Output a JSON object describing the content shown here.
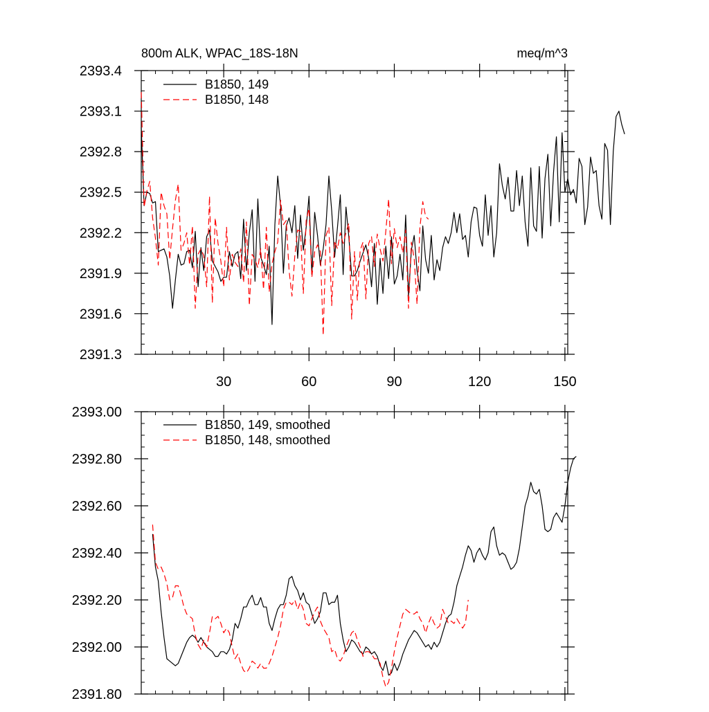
{
  "charts": [
    {
      "title_left": "800m ALK, WPAC_18S-18N",
      "title_right": "meq/m^3"
    },
    {}
  ],
  "chart_data": [
    {
      "type": "line",
      "title": "800m ALK, WPAC_18S-18N",
      "units": "meq/m^3",
      "xlim": [
        1,
        151
      ],
      "ylim": [
        2391.3,
        2393.4
      ],
      "xticks": [
        30,
        60,
        90,
        120,
        150
      ],
      "xtick_labels": [
        "30",
        "60",
        "90",
        "120",
        "150"
      ],
      "yticks": [
        2391.3,
        2391.6,
        2391.9,
        2392.2,
        2392.5,
        2392.8,
        2393.1,
        2393.4
      ],
      "ytick_labels": [
        "2391.3",
        "2391.6",
        "2391.9",
        "2392.2",
        "2392.5",
        "2392.8",
        "2393.1",
        "2393.4"
      ],
      "series": [
        {
          "name": "B1850, 149",
          "color": "#000000",
          "dash": "solid",
          "x_start": 1,
          "values": [
            2392.98,
            2392.4,
            2392.5,
            2392.49,
            2392.42,
            2392.43,
            2392.06,
            2392.07,
            2392.08,
            2392.02,
            2391.88,
            2391.64,
            2391.85,
            2392.04,
            2391.96,
            2391.97,
            2392.06,
            2392.07,
            2391.94,
            2392.21,
            2391.8,
            2392.09,
            2391.92,
            2392.17,
            2392.22,
            2391.99,
            2391.95,
            2391.91,
            2391.84,
            2391.87,
            2391.87,
            2392.06,
            2391.95,
            2392.04,
            2392.06,
            2391.86,
            2392.3,
            2391.92,
            2392.2,
            2392.37,
            2391.84,
            2392.45,
            2392.02,
            2391.96,
            2391.89,
            2392.1,
            2391.52,
            2392.26,
            2392.62,
            2392.4,
            2391.9,
            2392.25,
            2392.31,
            2392.2,
            2392.4,
            2392.01,
            2392.33,
            2392.07,
            2392.24,
            2392.47,
            2391.89,
            2392.35,
            2392.18,
            2391.96,
            2392.08,
            2392.26,
            2392.62,
            2392.36,
            2392.02,
            2392.24,
            2392.48,
            2391.89,
            2392.39,
            2392.17,
            2391.88,
            2391.88,
            2391.92,
            2391.99,
            2392.05,
            2392.11,
            2392.01,
            2391.8,
            2392.12,
            2391.67,
            2392.01,
            2391.75,
            2392.1,
            2391.86,
            2392.17,
            2391.82,
            2391.88,
            2392.04,
            2391.85,
            2392.33,
            2391.73,
            2392.07,
            2392.18,
            2391.92,
            2391.77,
            2392.25,
            2392.0,
            2391.9,
            2392.18,
            2391.85,
            2392.0,
            2391.92,
            2392.09,
            2392.17,
            2392.12,
            2392.2,
            2392.35,
            2392.2,
            2392.34,
            2392.15,
            2392.18,
            2392.02,
            2392.28,
            2392.39,
            2392.38,
            2392.18,
            2392.1,
            2392.48,
            2392.18,
            2392.4,
            2392.02,
            2392.2,
            2392.71,
            2392.55,
            2392.45,
            2392.61,
            2392.36,
            2392.36,
            2392.66,
            2392.4,
            2392.62,
            2392.28,
            2392.1,
            2392.68,
            2392.25,
            2392.21,
            2392.69,
            2392.16,
            2392.6,
            2392.78,
            2392.25,
            2392.65,
            2392.91,
            2392.28,
            2392.94,
            2392.5,
            2392.6,
            2392.48,
            2392.52,
            2392.42,
            2392.75,
            2392.69,
            2392.26,
            2392.39,
            2392.76,
            2392.64,
            2392.66,
            2392.4,
            2392.3,
            2392.86,
            2392.81,
            2392.26,
            2392.8,
            2393.06,
            2393.1,
            2393.0,
            2392.93
          ]
        },
        {
          "name": "B1850, 148",
          "color": "#ff0000",
          "dash": "dashed",
          "x_start": 1,
          "values": [
            2393.24,
            2392.39,
            2392.51,
            2392.58,
            2392.31,
            2392.16,
            2391.96,
            2392.5,
            2392.4,
            2392.34,
            2392.0,
            2392.23,
            2392.44,
            2392.56,
            2392.07,
            2392.12,
            2392.2,
            2391.96,
            2392.25,
            2391.64,
            2392.04,
            2392.08,
            2392.03,
            2391.8,
            2392.47,
            2391.68,
            2392.31,
            2392.12,
            2391.99,
            2391.8,
            2392.24,
            2391.85,
            2392.04,
            2391.98,
            2391.95,
            2392.08,
            2391.83,
            2392.28,
            2391.66,
            2392.04,
            2392.0,
            2391.94,
            2392.08,
            2391.78,
            2392.24,
            2391.76,
            2391.97,
            2392.06,
            2392.13,
            2392.44,
            2392.26,
            2392.29,
            2391.92,
            2391.73,
            2392.03,
            2392.22,
            2392.21,
            2391.75,
            2392.29,
            2392.38,
            2391.87,
            2392.06,
            2392.11,
            2392.06,
            2391.44,
            2392.18,
            2392.24,
            2391.66,
            2392.14,
            2392.08,
            2392.2,
            2392.12,
            2392.2,
            2392.27,
            2391.56,
            2392.06,
            2391.7,
            2392.07,
            2392.13,
            2391.71,
            2392.12,
            2392.17,
            2391.95,
            2392.19,
            2392.08,
            2391.99,
            2392.21,
            2392.45,
            2391.97,
            2392.23,
            2392.09,
            2392.17,
            2392.05,
            2392.22,
            2391.64,
            2392.13,
            2392.01,
            2391.67,
            2392.24,
            2392.43,
            2392.32,
            2392.3
          ]
        }
      ]
    },
    {
      "type": "line",
      "title": "",
      "xlim": [
        1,
        151
      ],
      "ylim": [
        2391.8,
        2393.0
      ],
      "xticks": [
        30,
        60,
        90,
        120,
        150
      ],
      "yticks": [
        2391.8,
        2392.0,
        2392.2,
        2392.4,
        2392.6,
        2392.8,
        2393.0
      ],
      "ytick_labels": [
        "2391.80",
        "2392.00",
        "2392.20",
        "2392.40",
        "2392.60",
        "2392.80",
        "2393.00"
      ],
      "series": [
        {
          "name": "B1850, 149, smoothed",
          "color": "#000000",
          "dash": "solid",
          "x_start": 5,
          "values": [
            2392.48,
            2392.34,
            2392.28,
            2392.15,
            2392.04,
            2391.95,
            2391.94,
            2391.93,
            2391.92,
            2391.93,
            2391.96,
            2391.99,
            2392.02,
            2392.04,
            2392.05,
            2392.04,
            2392.02,
            2392.04,
            2392.02,
            2392.0,
            2391.99,
            2391.98,
            2391.96,
            2391.96,
            2391.98,
            2391.98,
            2391.97,
            2391.99,
            2392.03,
            2392.1,
            2392.08,
            2392.12,
            2392.17,
            2392.17,
            2392.2,
            2392.22,
            2392.18,
            2392.18,
            2392.21,
            2392.17,
            2392.17,
            2392.1,
            2392.07,
            2392.12,
            2392.16,
            2392.18,
            2392.18,
            2392.22,
            2392.29,
            2392.3,
            2392.26,
            2392.24,
            2392.2,
            2392.23,
            2392.19,
            2392.18,
            2392.14,
            2392.1,
            2392.12,
            2392.15,
            2392.23,
            2392.23,
            2392.18,
            2392.19,
            2392.19,
            2392.22,
            2392.1,
            2392.03,
            2391.98,
            2392.0,
            2392.03,
            2392.02,
            2392.0,
            2391.98,
            2391.97,
            2392.0,
            2391.99,
            2391.97,
            2391.98,
            2391.96,
            2391.92,
            2391.9,
            2391.94,
            2391.88,
            2391.89,
            2391.93,
            2391.9,
            2391.93,
            2391.97,
            2392.0,
            2392.03,
            2392.05,
            2392.07,
            2392.06,
            2392.04,
            2392.02,
            2392.0,
            2392.01,
            2391.99,
            2392.02,
            2392.0,
            2392.02,
            2392.06,
            2392.1,
            2392.13,
            2392.14,
            2392.19,
            2392.26,
            2392.3,
            2392.34,
            2392.39,
            2392.43,
            2392.41,
            2392.36,
            2392.4,
            2392.42,
            2392.39,
            2392.37,
            2392.4,
            2392.49,
            2392.51,
            2392.43,
            2392.39,
            2392.4,
            2392.39,
            2392.36,
            2392.33,
            2392.34,
            2392.36,
            2392.42,
            2392.51,
            2392.6,
            2392.64,
            2392.7,
            2392.66,
            2392.65,
            2392.67,
            2392.6,
            2392.5,
            2392.49,
            2392.5,
            2392.55,
            2392.57,
            2392.55,
            2392.53,
            2392.6,
            2392.7,
            2392.76,
            2392.8,
            2392.81
          ]
        },
        {
          "name": "B1850, 148, smoothed",
          "color": "#ff0000",
          "dash": "dashed",
          "x_start": 5,
          "values": [
            2392.52,
            2392.36,
            2392.33,
            2392.34,
            2392.31,
            2392.27,
            2392.2,
            2392.21,
            2392.26,
            2392.26,
            2392.22,
            2392.17,
            2392.14,
            2392.13,
            2392.12,
            2392.05,
            2392.01,
            2391.99,
            2392.03,
            2392.0,
            2392.06,
            2392.13,
            2392.12,
            2392.13,
            2392.1,
            2392.06,
            2392.08,
            2392.06,
            2392.0,
            2391.95,
            2391.97,
            2391.93,
            2391.9,
            2391.89,
            2391.91,
            2391.94,
            2391.93,
            2391.91,
            2391.93,
            2391.91,
            2391.91,
            2391.93,
            2391.96,
            2392.0,
            2392.04,
            2392.09,
            2392.16,
            2392.19,
            2392.19,
            2392.18,
            2392.2,
            2392.16,
            2392.19,
            2392.16,
            2392.1,
            2392.09,
            2392.12,
            2392.15,
            2392.17,
            2392.11,
            2392.08,
            2392.06,
            2392.04,
            2391.98,
            2391.99,
            2391.95,
            2391.94,
            2391.96,
            2392.0,
            2392.03,
            2392.06,
            2392.07,
            2392.03,
            2392.0,
            2391.96,
            2391.98,
            2391.98,
            2391.97,
            2391.95,
            2391.95,
            2391.93,
            2391.87,
            2391.83,
            2391.85,
            2391.91,
            2391.98,
            2392.04,
            2392.09,
            2392.14,
            2392.16,
            2392.15,
            2392.14,
            2392.14,
            2392.15,
            2392.12,
            2392.1,
            2392.06,
            2392.1,
            2392.13,
            2392.1,
            2392.08,
            2392.09,
            2392.16,
            2392.13,
            2392.1,
            2392.11,
            2392.1,
            2392.12,
            2392.1,
            2392.08,
            2392.1,
            2392.2
          ]
        }
      ]
    }
  ]
}
